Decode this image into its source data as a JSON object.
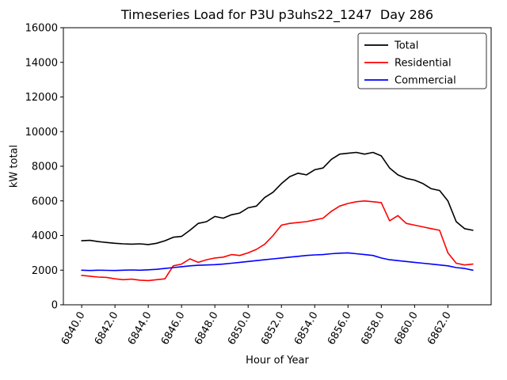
{
  "chart_data": {
    "type": "line",
    "title": "Timeseries Load for P3U p3uhs22_1247  Day 286",
    "xlabel": "Hour of Year",
    "ylabel": "kW total",
    "xlim": [
      6838.9,
      6864.6
    ],
    "ylim": [
      0,
      16000
    ],
    "grid": false,
    "legend_position": "upper right",
    "xticks": {
      "values": [
        6840,
        6842,
        6844,
        6846,
        6848,
        6850,
        6852,
        6854,
        6856,
        6858,
        6860,
        6862
      ],
      "labels": [
        "6840.0",
        "6842.0",
        "6844.0",
        "6846.0",
        "6848.0",
        "6850.0",
        "6852.0",
        "6854.0",
        "6856.0",
        "6858.0",
        "6860.0",
        "6862.0"
      ]
    },
    "yticks": {
      "values": [
        0,
        2000,
        4000,
        6000,
        8000,
        10000,
        12000,
        14000,
        16000
      ],
      "labels": [
        "0",
        "2000",
        "4000",
        "6000",
        "8000",
        "10000",
        "12000",
        "14000",
        "16000"
      ]
    },
    "x": [
      6840.0,
      6840.5,
      6841.0,
      6841.5,
      6842.0,
      6842.5,
      6843.0,
      6843.5,
      6844.0,
      6844.5,
      6845.0,
      6845.5,
      6846.0,
      6846.5,
      6847.0,
      6847.5,
      6848.0,
      6848.5,
      6849.0,
      6849.5,
      6850.0,
      6850.5,
      6851.0,
      6851.5,
      6852.0,
      6852.5,
      6853.0,
      6853.5,
      6854.0,
      6854.5,
      6855.0,
      6855.5,
      6856.0,
      6856.5,
      6857.0,
      6857.5,
      6858.0,
      6858.5,
      6859.0,
      6859.5,
      6860.0,
      6860.5,
      6861.0,
      6861.5,
      6862.0,
      6862.5,
      6863.0,
      6863.5
    ],
    "series": [
      {
        "name": "Total",
        "color": "#000000",
        "values": [
          3700,
          3720,
          3650,
          3600,
          3550,
          3520,
          3500,
          3520,
          3480,
          3550,
          3700,
          3900,
          3950,
          4300,
          4700,
          4800,
          5100,
          5000,
          5200,
          5300,
          5600,
          5700,
          6200,
          6500,
          7000,
          7400,
          7600,
          7500,
          7800,
          7900,
          8400,
          8700,
          8750,
          8800,
          8700,
          8800,
          8600,
          7900,
          7500,
          7300,
          7200,
          7000,
          6700,
          6600,
          6000,
          4800,
          4400,
          4300
        ]
      },
      {
        "name": "Residential",
        "color": "#ff0000",
        "values": [
          1700,
          1650,
          1600,
          1580,
          1500,
          1450,
          1480,
          1420,
          1400,
          1450,
          1500,
          2250,
          2350,
          2650,
          2450,
          2600,
          2700,
          2750,
          2900,
          2850,
          3000,
          3200,
          3500,
          4000,
          4600,
          4700,
          4750,
          4800,
          4900,
          5000,
          5400,
          5700,
          5850,
          5950,
          6000,
          5950,
          5900,
          4850,
          5150,
          4700,
          4600,
          4500,
          4400,
          4300,
          3000,
          2400,
          2300,
          2350
        ]
      },
      {
        "name": "Commercial",
        "color": "#0000ff",
        "values": [
          2000,
          1980,
          2000,
          1990,
          1980,
          2000,
          2010,
          2000,
          2020,
          2050,
          2100,
          2150,
          2200,
          2250,
          2280,
          2300,
          2320,
          2350,
          2400,
          2450,
          2500,
          2550,
          2600,
          2650,
          2700,
          2750,
          2800,
          2850,
          2880,
          2900,
          2950,
          2980,
          3000,
          2950,
          2900,
          2850,
          2700,
          2600,
          2550,
          2500,
          2450,
          2400,
          2350,
          2300,
          2250,
          2150,
          2100,
          2000
        ]
      }
    ]
  }
}
